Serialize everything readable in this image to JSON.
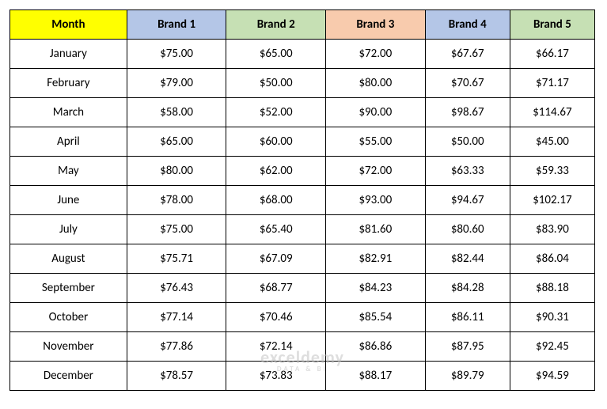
{
  "table": {
    "columns": [
      {
        "key": "month",
        "label": "Month",
        "header_bg": "#ffff00",
        "width": "20%"
      },
      {
        "key": "b1",
        "label": "Brand 1",
        "header_bg": "#b4c6e7",
        "width": "17%"
      },
      {
        "key": "b2",
        "label": "Brand 2",
        "header_bg": "#c6e0b4",
        "width": "17%"
      },
      {
        "key": "b3",
        "label": "Brand 3",
        "header_bg": "#f8cbad",
        "width": "17%"
      },
      {
        "key": "b4",
        "label": "Brand 4",
        "header_bg": "#b4c6e7",
        "width": "14.5%"
      },
      {
        "key": "b5",
        "label": "Brand 5",
        "header_bg": "#c6e0b4",
        "width": "14.5%"
      }
    ],
    "rows": [
      {
        "month": "January",
        "b1": "$75.00",
        "b2": "$65.00",
        "b3": "$72.00",
        "b4": "$67.67",
        "b5": "$66.17"
      },
      {
        "month": "February",
        "b1": "$79.00",
        "b2": "$50.00",
        "b3": "$80.00",
        "b4": "$70.67",
        "b5": "$71.17"
      },
      {
        "month": "March",
        "b1": "$58.00",
        "b2": "$52.00",
        "b3": "$90.00",
        "b4": "$98.67",
        "b5": "$114.67"
      },
      {
        "month": "April",
        "b1": "$65.00",
        "b2": "$60.00",
        "b3": "$55.00",
        "b4": "$50.00",
        "b5": "$45.00"
      },
      {
        "month": "May",
        "b1": "$80.00",
        "b2": "$62.00",
        "b3": "$72.00",
        "b4": "$63.33",
        "b5": "$59.33"
      },
      {
        "month": "June",
        "b1": "$78.00",
        "b2": "$68.00",
        "b3": "$93.00",
        "b4": "$94.67",
        "b5": "$102.17"
      },
      {
        "month": "July",
        "b1": "$75.00",
        "b2": "$65.40",
        "b3": "$81.60",
        "b4": "$80.60",
        "b5": "$83.90"
      },
      {
        "month": "August",
        "b1": "$75.71",
        "b2": "$67.09",
        "b3": "$82.91",
        "b4": "$82.44",
        "b5": "$86.04"
      },
      {
        "month": "September",
        "b1": "$76.43",
        "b2": "$68.77",
        "b3": "$84.23",
        "b4": "$84.28",
        "b5": "$88.18"
      },
      {
        "month": "October",
        "b1": "$77.14",
        "b2": "$70.46",
        "b3": "$85.54",
        "b4": "$86.11",
        "b5": "$90.31"
      },
      {
        "month": "November",
        "b1": "$77.86",
        "b2": "$72.14",
        "b3": "$86.86",
        "b4": "$87.95",
        "b5": "$92.45"
      },
      {
        "month": "December",
        "b1": "$78.57",
        "b2": "$73.83",
        "b3": "$88.17",
        "b4": "$89.79",
        "b5": "$94.59"
      }
    ],
    "cell_bg": "#ffffff",
    "border_color": "#000000",
    "fontsize": 15
  },
  "watermark": {
    "main": "exceldemy",
    "sub": "DATA & BI"
  }
}
